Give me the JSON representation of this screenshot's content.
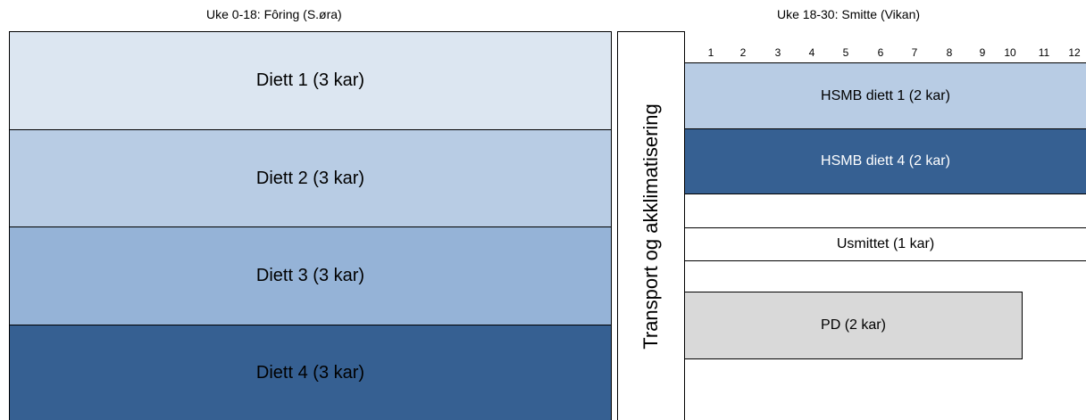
{
  "headers": {
    "left": "Uke 0-18: Fôring (S.øra)",
    "right": "Uke 18-30: Smitte (Vikan)"
  },
  "left_groups": [
    {
      "label": "Diett 1 (3 kar)",
      "color": "#dce6f1"
    },
    {
      "label": "Diett 2 (3 kar)",
      "color": "#b8cce4"
    },
    {
      "label": "Diett 3 (3 kar)",
      "color": "#95b3d7"
    },
    {
      "label": "Diett 4 (3 kar)",
      "color": "#366092"
    }
  ],
  "transport_label": "Transport og akklimatisering",
  "weeks": [
    "1",
    "2",
    "3",
    "4",
    "5",
    "6",
    "7",
    "8",
    "9",
    "10",
    "11",
    "12"
  ],
  "right_groups": [
    {
      "label": "HSMB diett 1 (2 kar)",
      "color": "#b8cce4"
    },
    {
      "label": "HSMB diett 4 (2 kar)",
      "color": "#366092"
    },
    {
      "label": "Usmittet (1 kar)",
      "color": "#ffffff"
    },
    {
      "label": "PD (2 kar)",
      "color": "#d9d9d9"
    }
  ]
}
